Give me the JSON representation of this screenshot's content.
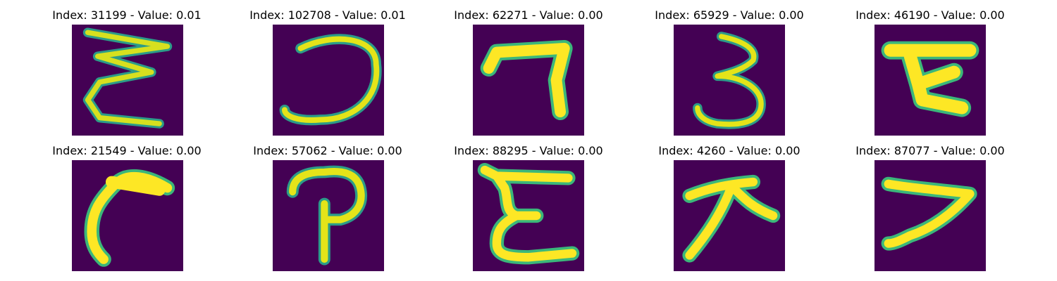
{
  "figure": {
    "colormap": "viridis",
    "background_color": "#440154",
    "panels": [
      {
        "title": "Index: 31199 - Value: 0.01",
        "glyph": "stacked-epsilon-zigzag"
      },
      {
        "title": "Index: 102708 - Value: 0.01",
        "glyph": "reversed-c-curve"
      },
      {
        "title": "Index: 62271 - Value: 0.00",
        "glyph": "seven-like-hook"
      },
      {
        "title": "Index: 65929 - Value: 0.00",
        "glyph": "digit-three"
      },
      {
        "title": "Index: 46190 - Value: 0.00",
        "glyph": "bar-with-k-leg"
      },
      {
        "title": "Index: 21549 - Value: 0.00",
        "glyph": "curved-hook"
      },
      {
        "title": "Index: 57062 - Value: 0.00",
        "glyph": "p-like-stroke"
      },
      {
        "title": "Index: 88295 - Value: 0.00",
        "glyph": "epsilon-e"
      },
      {
        "title": "Index: 4260 - Value: 0.00",
        "glyph": "arrow-strokes"
      },
      {
        "title": "Index: 87077 - Value: 0.00",
        "glyph": "seven-diagonal"
      }
    ]
  }
}
